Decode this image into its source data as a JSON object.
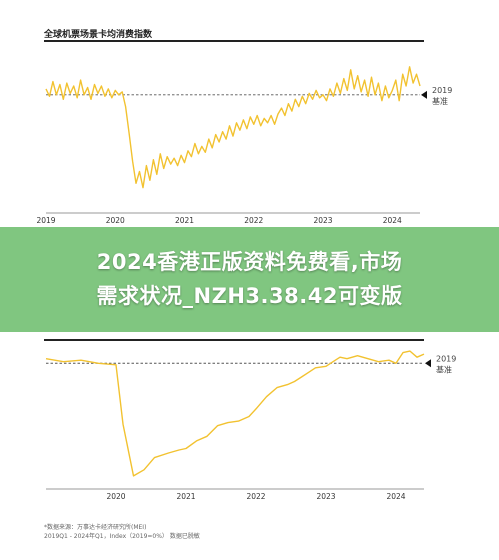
{
  "banner": {
    "line1": "2024香港正版资料免费看,市场",
    "line2": "需求状况_NZH3.38.42可变版"
  },
  "chart_data": [
    {
      "type": "line",
      "title": "全球机票场景卡均消费指数",
      "xlabel": "",
      "ylabel": "",
      "ticks": [
        "2019",
        "2020",
        "2021",
        "2022",
        "2023",
        "2024"
      ],
      "reference_line": {
        "value": 100,
        "label_line1": "2019",
        "label_line2": "基准"
      },
      "ylim": [
        30,
        125
      ],
      "color": "#f2c230",
      "source_note": "*数据来源：万事达卡经济研究所(MEI)",
      "series": [
        {
          "values": [
            [
              2019.0,
              104
            ],
            [
              2019.05,
              99
            ],
            [
              2019.1,
              109
            ],
            [
              2019.15,
              100
            ],
            [
              2019.2,
              107
            ],
            [
              2019.25,
              97
            ],
            [
              2019.3,
              108
            ],
            [
              2019.35,
              101
            ],
            [
              2019.4,
              106
            ],
            [
              2019.45,
              98
            ],
            [
              2019.5,
              110
            ],
            [
              2019.55,
              100
            ],
            [
              2019.6,
              105
            ],
            [
              2019.65,
              97
            ],
            [
              2019.7,
              107
            ],
            [
              2019.75,
              101
            ],
            [
              2019.8,
              106
            ],
            [
              2019.85,
              99
            ],
            [
              2019.9,
              104
            ],
            [
              2019.95,
              98
            ],
            [
              2020.0,
              103
            ],
            [
              2020.05,
              100
            ],
            [
              2020.1,
              102
            ],
            [
              2020.15,
              92
            ],
            [
              2020.2,
              74
            ],
            [
              2020.25,
              55
            ],
            [
              2020.3,
              40
            ],
            [
              2020.35,
              48
            ],
            [
              2020.4,
              37
            ],
            [
              2020.45,
              52
            ],
            [
              2020.5,
              42
            ],
            [
              2020.55,
              56
            ],
            [
              2020.6,
              46
            ],
            [
              2020.65,
              60
            ],
            [
              2020.7,
              50
            ],
            [
              2020.75,
              58
            ],
            [
              2020.8,
              53
            ],
            [
              2020.85,
              57
            ],
            [
              2020.9,
              52
            ],
            [
              2020.95,
              59
            ],
            [
              2021.0,
              54
            ],
            [
              2021.05,
              62
            ],
            [
              2021.1,
              58
            ],
            [
              2021.15,
              67
            ],
            [
              2021.2,
              60
            ],
            [
              2021.25,
              65
            ],
            [
              2021.3,
              61
            ],
            [
              2021.35,
              70
            ],
            [
              2021.4,
              64
            ],
            [
              2021.45,
              73
            ],
            [
              2021.5,
              68
            ],
            [
              2021.55,
              75
            ],
            [
              2021.6,
              70
            ],
            [
              2021.65,
              79
            ],
            [
              2021.7,
              72
            ],
            [
              2021.75,
              81
            ],
            [
              2021.8,
              76
            ],
            [
              2021.85,
              83
            ],
            [
              2021.9,
              77
            ],
            [
              2021.95,
              85
            ],
            [
              2022.0,
              80
            ],
            [
              2022.05,
              86
            ],
            [
              2022.1,
              79
            ],
            [
              2022.15,
              84
            ],
            [
              2022.2,
              81
            ],
            [
              2022.25,
              86
            ],
            [
              2022.3,
              80
            ],
            [
              2022.35,
              87
            ],
            [
              2022.4,
              91
            ],
            [
              2022.45,
              86
            ],
            [
              2022.5,
              94
            ],
            [
              2022.55,
              89
            ],
            [
              2022.6,
              97
            ],
            [
              2022.65,
              92
            ],
            [
              2022.7,
              99
            ],
            [
              2022.75,
              94
            ],
            [
              2022.8,
              101
            ],
            [
              2022.85,
              97
            ],
            [
              2022.9,
              103
            ],
            [
              2022.95,
              98
            ],
            [
              2023.0,
              100
            ],
            [
              2023.05,
              96
            ],
            [
              2023.1,
              104
            ],
            [
              2023.15,
              99
            ],
            [
              2023.2,
              108
            ],
            [
              2023.25,
              101
            ],
            [
              2023.3,
              111
            ],
            [
              2023.35,
              103
            ],
            [
              2023.4,
              117
            ],
            [
              2023.45,
              104
            ],
            [
              2023.5,
              113
            ],
            [
              2023.55,
              102
            ],
            [
              2023.6,
              110
            ],
            [
              2023.65,
              99
            ],
            [
              2023.7,
              112
            ],
            [
              2023.75,
              100
            ],
            [
              2023.8,
              108
            ],
            [
              2023.85,
              96
            ],
            [
              2023.9,
              106
            ],
            [
              2023.95,
              98
            ],
            [
              2024.0,
              103
            ],
            [
              2024.05,
              110
            ],
            [
              2024.1,
              96
            ],
            [
              2024.15,
              114
            ],
            [
              2024.2,
              106
            ],
            [
              2024.25,
              119
            ],
            [
              2024.3,
              108
            ],
            [
              2024.35,
              114
            ],
            [
              2024.4,
              106
            ]
          ]
        }
      ]
    },
    {
      "type": "line",
      "title": "",
      "xlabel": "",
      "ylabel": "",
      "ticks": [
        "2020",
        "2021",
        "2022",
        "2023",
        "2024"
      ],
      "reference_line": {
        "value": 100,
        "label_line1": "2019",
        "label_line2": "基准"
      },
      "ylim": [
        20,
        112
      ],
      "color": "#f2c230",
      "source_note": "*数据来源：万事达卡经济研究所(MEI)",
      "source_note2": "2019Q1 - 2024年Q1，Index（2019=0%） 数据已脱敏",
      "series": [
        {
          "values": [
            [
              2019.0,
              103
            ],
            [
              2019.25,
              101
            ],
            [
              2019.5,
              102
            ],
            [
              2019.75,
              100
            ],
            [
              2020.0,
              99
            ],
            [
              2020.1,
              60
            ],
            [
              2020.25,
              26
            ],
            [
              2020.4,
              30
            ],
            [
              2020.55,
              38
            ],
            [
              2020.75,
              41
            ],
            [
              2020.9,
              43
            ],
            [
              2021.0,
              44
            ],
            [
              2021.15,
              49
            ],
            [
              2021.3,
              52
            ],
            [
              2021.45,
              59
            ],
            [
              2021.6,
              61
            ],
            [
              2021.75,
              62
            ],
            [
              2021.9,
              65
            ],
            [
              2022.0,
              70
            ],
            [
              2022.15,
              78
            ],
            [
              2022.3,
              84
            ],
            [
              2022.45,
              86
            ],
            [
              2022.55,
              88
            ],
            [
              2022.65,
              91
            ],
            [
              2022.75,
              94
            ],
            [
              2022.85,
              97
            ],
            [
              2023.0,
              98
            ],
            [
              2023.1,
              101
            ],
            [
              2023.2,
              104
            ],
            [
              2023.3,
              103
            ],
            [
              2023.45,
              105
            ],
            [
              2023.6,
              103
            ],
            [
              2023.75,
              101
            ],
            [
              2023.9,
              102
            ],
            [
              2024.0,
              100
            ],
            [
              2024.1,
              107
            ],
            [
              2024.2,
              108
            ],
            [
              2024.3,
              104
            ],
            [
              2024.4,
              106
            ]
          ]
        }
      ]
    }
  ]
}
